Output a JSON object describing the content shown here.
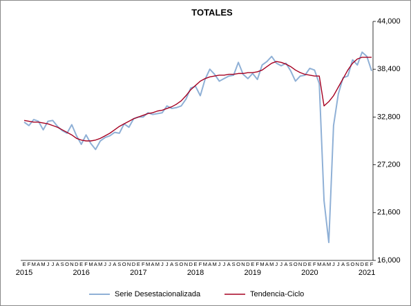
{
  "chart_data": {
    "type": "line",
    "title": "TOTALES",
    "categories": [
      "E",
      "F",
      "M",
      "A",
      "M",
      "J",
      "J",
      "A",
      "S",
      "O",
      "N",
      "D",
      "E",
      "F",
      "M",
      "A",
      "M",
      "J",
      "J",
      "A",
      "S",
      "O",
      "N",
      "D",
      "E",
      "F",
      "M",
      "A",
      "M",
      "J",
      "J",
      "A",
      "S",
      "O",
      "N",
      "D",
      "E",
      "F",
      "M",
      "A",
      "M",
      "J",
      "J",
      "A",
      "S",
      "O",
      "N",
      "D",
      "E",
      "F",
      "M",
      "A",
      "M",
      "J",
      "J",
      "A",
      "S",
      "O",
      "N",
      "D",
      "E",
      "F",
      "M",
      "A",
      "M",
      "J",
      "J",
      "A",
      "S",
      "O",
      "N",
      "D",
      "E",
      "F"
    ],
    "year_labels": [
      "2015",
      "2016",
      "2017",
      "2018",
      "2019",
      "2020",
      "2021"
    ],
    "series": [
      {
        "name": "Serie Desestacionalizada",
        "color": "#8fb0d6",
        "values": [
          32200,
          31800,
          32500,
          32300,
          31300,
          32300,
          32400,
          31700,
          31200,
          30900,
          31900,
          30600,
          29600,
          30700,
          29700,
          29000,
          30000,
          30400,
          30600,
          31000,
          30900,
          32000,
          31600,
          32600,
          32800,
          32800,
          33300,
          33100,
          33200,
          33300,
          34100,
          33800,
          33900,
          34100,
          34900,
          36200,
          36400,
          35300,
          37200,
          38400,
          37800,
          37000,
          37300,
          37600,
          37700,
          39200,
          37800,
          37300,
          37900,
          37200,
          38900,
          39300,
          39900,
          39100,
          38800,
          39100,
          38200,
          37000,
          37600,
          37700,
          38500,
          38300,
          36700,
          23000,
          18100,
          31800,
          35500,
          37400,
          37600,
          39500,
          38900,
          40400,
          39900,
          38200
        ]
      },
      {
        "name": "Tendencia-Ciclo",
        "color": "#a50021",
        "values": [
          32400,
          32300,
          32200,
          32200,
          32100,
          32000,
          31800,
          31600,
          31300,
          31000,
          30700,
          30300,
          30100,
          30000,
          30000,
          30100,
          30300,
          30600,
          30900,
          31300,
          31700,
          32000,
          32300,
          32600,
          32800,
          33000,
          33200,
          33300,
          33500,
          33600,
          33800,
          34000,
          34300,
          34700,
          35300,
          36000,
          36500,
          37000,
          37300,
          37500,
          37600,
          37700,
          37700,
          37800,
          37800,
          37900,
          37900,
          38000,
          38000,
          38100,
          38300,
          38700,
          39100,
          39300,
          39200,
          39000,
          38700,
          38300,
          38000,
          37800,
          37700,
          37600,
          37600,
          34100,
          34600,
          35300,
          36300,
          37300,
          38300,
          39100,
          39600,
          39800,
          39800,
          39800
        ]
      }
    ],
    "ylim": [
      16000,
      44000
    ],
    "yticks": [
      {
        "value": 16000,
        "label": "16,000"
      },
      {
        "value": 21600,
        "label": "21,600"
      },
      {
        "value": 27200,
        "label": "27,200"
      },
      {
        "value": 32800,
        "label": "32,800"
      },
      {
        "value": 38400,
        "label": "38,400"
      },
      {
        "value": 44000,
        "label": "44,000"
      }
    ],
    "grid": false
  }
}
